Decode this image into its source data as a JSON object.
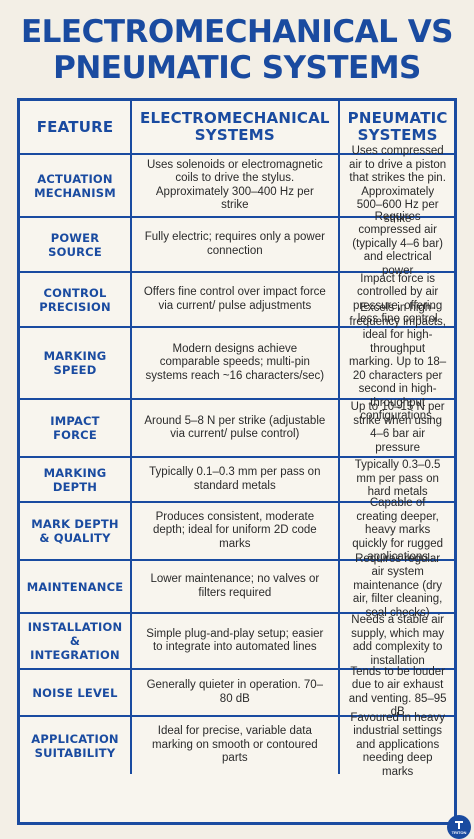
{
  "title_line1": "ELECTROMECHANICAL VS",
  "title_line2": "PNEUMATIC SYSTEMS",
  "headers": {
    "feature": "FEATURE",
    "electro_line1": "ELECTROMECHANICAL",
    "electro_line2": "SYSTEMS",
    "pneu_line1": "PNEUMATIC",
    "pneu_line2": "SYSTEMS"
  },
  "rows": [
    {
      "feature": [
        "ACTUATION",
        "MECHANISM"
      ],
      "electro": "Uses solenoids or electromagnetic coils to drive the stylus. Approximately 300–400 Hz per strike",
      "pneu": "Uses compressed air to drive a piston that strikes the pin. Approximately 500–600 Hz per strike"
    },
    {
      "feature": [
        "POWER SOURCE"
      ],
      "electro": "Fully electric; requires only a power connection",
      "pneu": "Requires compressed air (typically 4–6 bar) and electrical power"
    },
    {
      "feature": [
        "CONTROL",
        "PRECISION"
      ],
      "electro": "Offers fine control over impact force via current/ pulse adjustments",
      "pneu": "Impact force is controlled by air pressure, offering less fine control"
    },
    {
      "feature": [
        "MARKING",
        "SPEED"
      ],
      "electro": "Modern designs achieve comparable speeds; multi-pin systems reach ~16 characters/sec)",
      "pneu": "Excels in high-frequency impacts, ideal for high-throughput marking. Up to 18–20 characters per second in high-throughput configurations."
    },
    {
      "feature": [
        "IMPACT",
        "FORCE"
      ],
      "electro": "Around 5–8 N per strike (adjustable via current/ pulse control)",
      "pneu": "Up to 10–15 N per strike when using 4–6 bar air pressure"
    },
    {
      "feature": [
        "MARKING",
        "DEPTH"
      ],
      "electro": "Typically 0.1–0.3 mm per pass on standard metals",
      "pneu": "Typically 0.3–0.5 mm per pass on hard metals"
    },
    {
      "feature": [
        "MARK DEPTH",
        "& QUALITY"
      ],
      "electro": "Produces consistent, moderate depth; ideal for uniform 2D code marks",
      "pneu": "Capable of creating deeper, heavy marks quickly for rugged applications"
    },
    {
      "feature": [
        "MAINTENANCE"
      ],
      "electro": "Lower maintenance; no valves or filters required",
      "pneu": "Requires regular air system maintenance (dry air, filter cleaning, seal checks)"
    },
    {
      "feature": [
        "INSTALLATION &",
        "INTEGRATION"
      ],
      "electro": "Simple plug-and-play setup; easier to integrate into automated lines",
      "pneu": "Needs a stable air supply, which may add complexity to installation"
    },
    {
      "feature": [
        "NOISE LEVEL"
      ],
      "electro": "Generally quieter in operation. 70–80 dB",
      "pneu": "Tends to be louder due to air exhaust and venting. 85–95 dB"
    },
    {
      "feature": [
        "APPLICATION",
        "SUITABILITY"
      ],
      "electro": "Ideal for precise, variable data marking on smooth or contoured parts",
      "pneu": "Favoured in heavy industrial settings and applications needing deep marks"
    }
  ],
  "badge_text": "TRITON",
  "colors": {
    "accent": "#1a4ba0",
    "background": "#f3efe6",
    "text": "#2b2b2b"
  }
}
